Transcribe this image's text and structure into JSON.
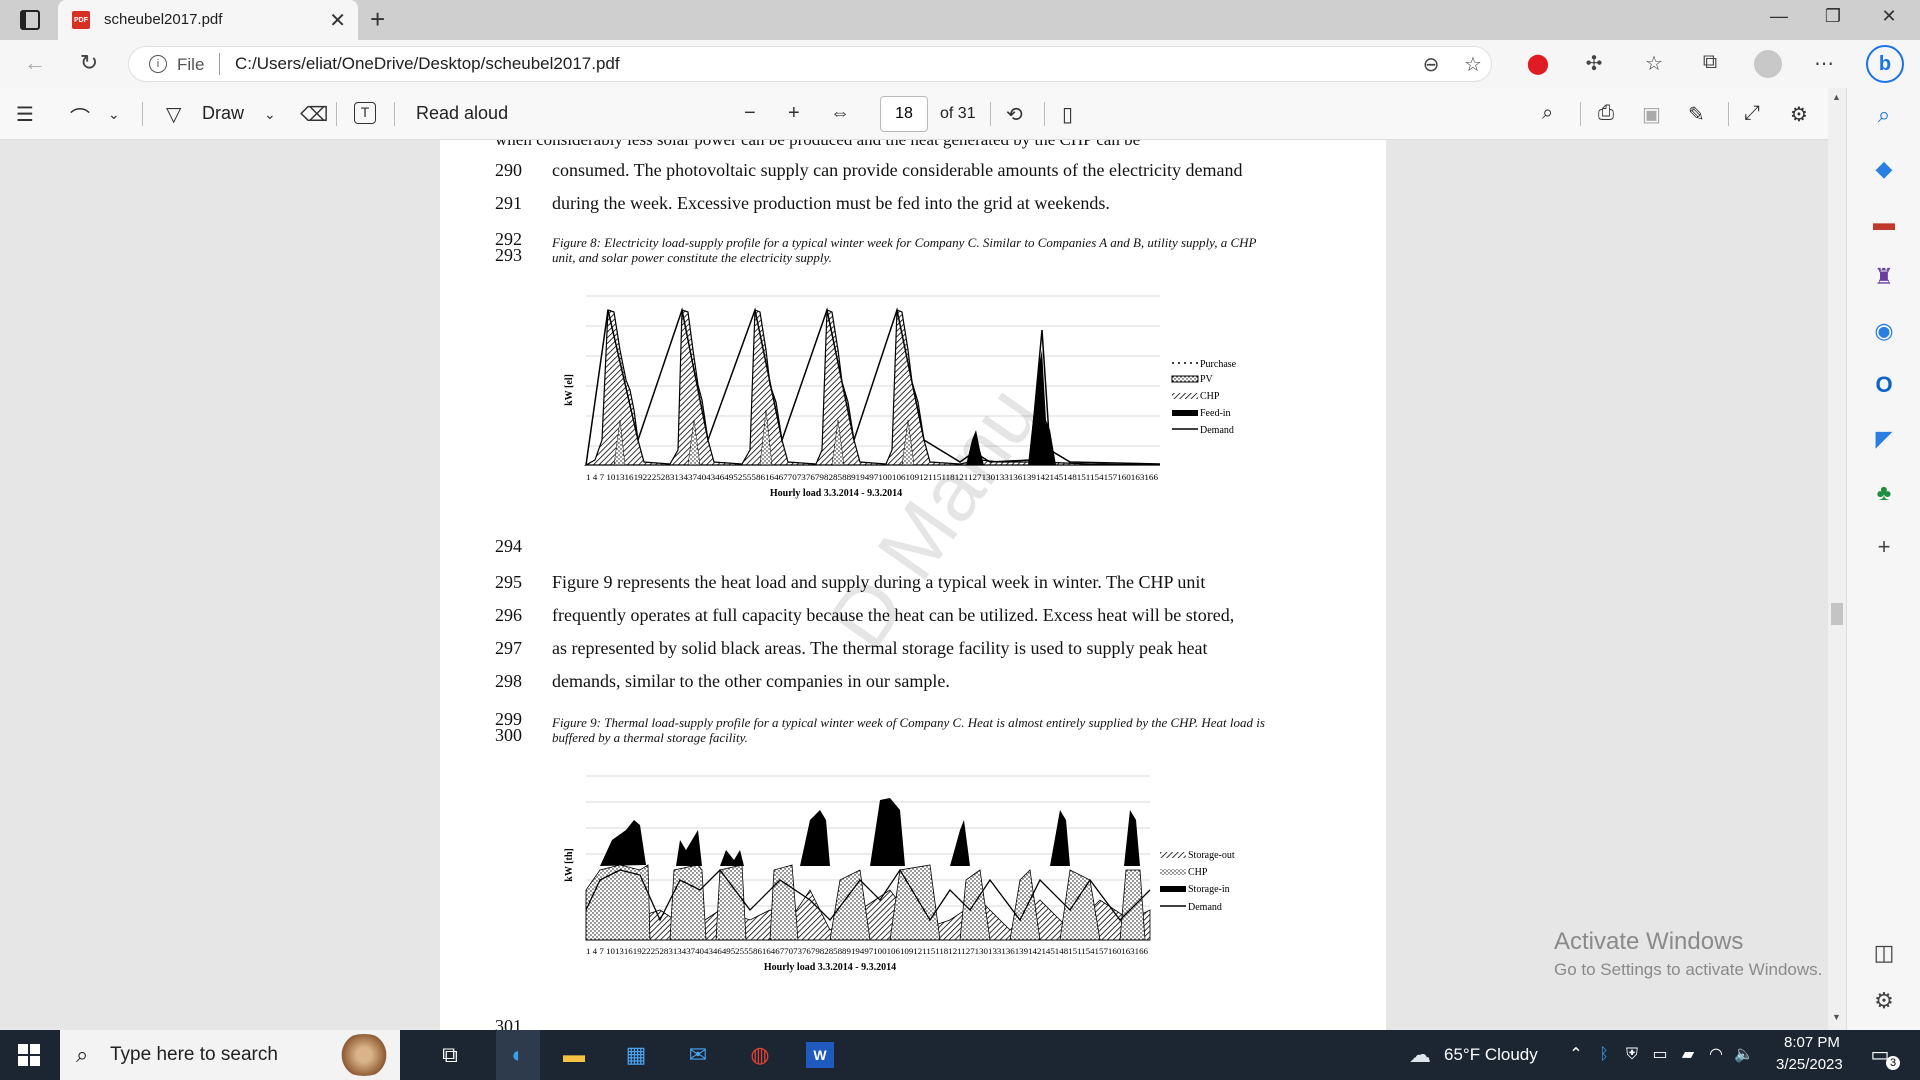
{
  "browser": {
    "tab_title": "scheubel2017.pdf",
    "url_scheme": "File",
    "url": "C:/Users/eliat/OneDrive/Desktop/scheubel2017.pdf"
  },
  "pdf_toolbar": {
    "draw_label": "Draw",
    "read_aloud_label": "Read aloud",
    "current_page": "18",
    "page_total": "of 31"
  },
  "document": {
    "top_cut_text": "when considerably less solar power can be produced and the heat generated by the CHP can be",
    "lines": [
      {
        "num": "290",
        "text": "consumed. The photovoltaic supply can provide considerable amounts of the electricity demand"
      },
      {
        "num": "291",
        "text": "during the week. Excessive production must be fed into the grid at weekends."
      }
    ],
    "fig8_caption_nums": [
      "292",
      "293"
    ],
    "fig8_caption": "Figure 8: Electricity load-supply profile for a typical winter week for Company C. Similar to Companies A and B, utility supply, a CHP unit, and solar power constitute the electricity supply.",
    "line_294": "294",
    "para": [
      {
        "num": "295",
        "text": "Figure 9 represents the heat load and supply during a typical week in winter. The CHP unit"
      },
      {
        "num": "296",
        "text": "frequently operates at full capacity because the heat can be utilized. Excess heat will be stored,"
      },
      {
        "num": "297",
        "text": "as represented by solid black areas. The thermal storage facility is used to supply peak heat"
      },
      {
        "num": "298",
        "text": "demands, similar to the other companies in our sample."
      }
    ],
    "fig9_caption_nums": [
      "299",
      "300"
    ],
    "fig9_caption": "Figure 9: Thermal load-supply profile for a typical winter week of Company C. Heat is almost entirely supplied by the CHP. Heat load is buffered by a thermal storage facility.",
    "line_301": "301",
    "watermark": "D Manu"
  },
  "chart_data": [
    {
      "type": "area",
      "ylabel": "kW [el]",
      "xlabel": "Hourly load 3.3.2014 - 9.3.2014",
      "x_tick_text": "1 4 7 10131619222528313437404346495255586164677073767982858891949710010610912115118121127130133136139142145148151154157160163166",
      "legend": [
        "Purchase",
        "PV",
        "CHP",
        "Feed-in",
        "Demand"
      ],
      "legend_position": "right",
      "grid": true
    },
    {
      "type": "area",
      "ylabel": "kW [th]",
      "xlabel": "Hourly load 3.3.2014 - 9.3.2014",
      "x_tick_text": "1 4 7 10131619222528313437404346495255586164677073767982858891949710010610912115118121127130133136139142145148151154157160163166",
      "legend": [
        "Storage-out",
        "CHP",
        "Storage-in",
        "Demand"
      ],
      "legend_position": "right",
      "grid": true
    }
  ],
  "overlay": {
    "activate_title": "Activate Windows",
    "activate_sub": "Go to Settings to activate Windows."
  },
  "taskbar": {
    "search_placeholder": "Type here to search",
    "weather": "65°F  Cloudy",
    "time": "8:07 PM",
    "date": "3/25/2023",
    "notification_count": "3"
  }
}
